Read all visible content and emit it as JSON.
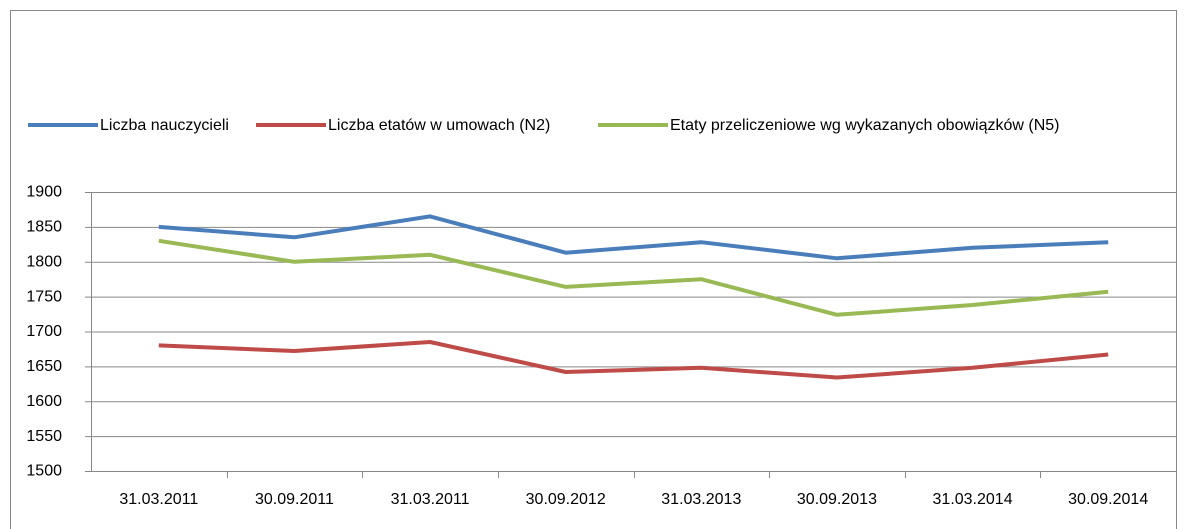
{
  "chart_data": {
    "type": "line",
    "categories": [
      "31.03.2011",
      "30.09.2011",
      "31.03.2011",
      "30.09.2012",
      "31.03.2013",
      "30.09.2013",
      "31.03.2014",
      "30.09.2014"
    ],
    "series": [
      {
        "name": "Liczba nauczycieli",
        "color": "#4a7ebb",
        "values": [
          1850,
          1835,
          1865,
          1813,
          1828,
          1805,
          1820,
          1828
        ]
      },
      {
        "name": "Liczba etatów w umowach (N2)",
        "color": "#be4b48",
        "values": [
          1680,
          1672,
          1685,
          1642,
          1648,
          1634,
          1648,
          1667
        ]
      },
      {
        "name": "Etaty przeliczeniowe wg wykazanych obowiązków (N5)",
        "color": "#98b954",
        "values": [
          1830,
          1800,
          1810,
          1764,
          1775,
          1724,
          1738,
          1757
        ]
      }
    ],
    "ylim": [
      1500,
      1900
    ],
    "yticks": [
      1500,
      1550,
      1600,
      1650,
      1700,
      1750,
      1800,
      1850,
      1900
    ],
    "grid": true,
    "legend": "top"
  }
}
